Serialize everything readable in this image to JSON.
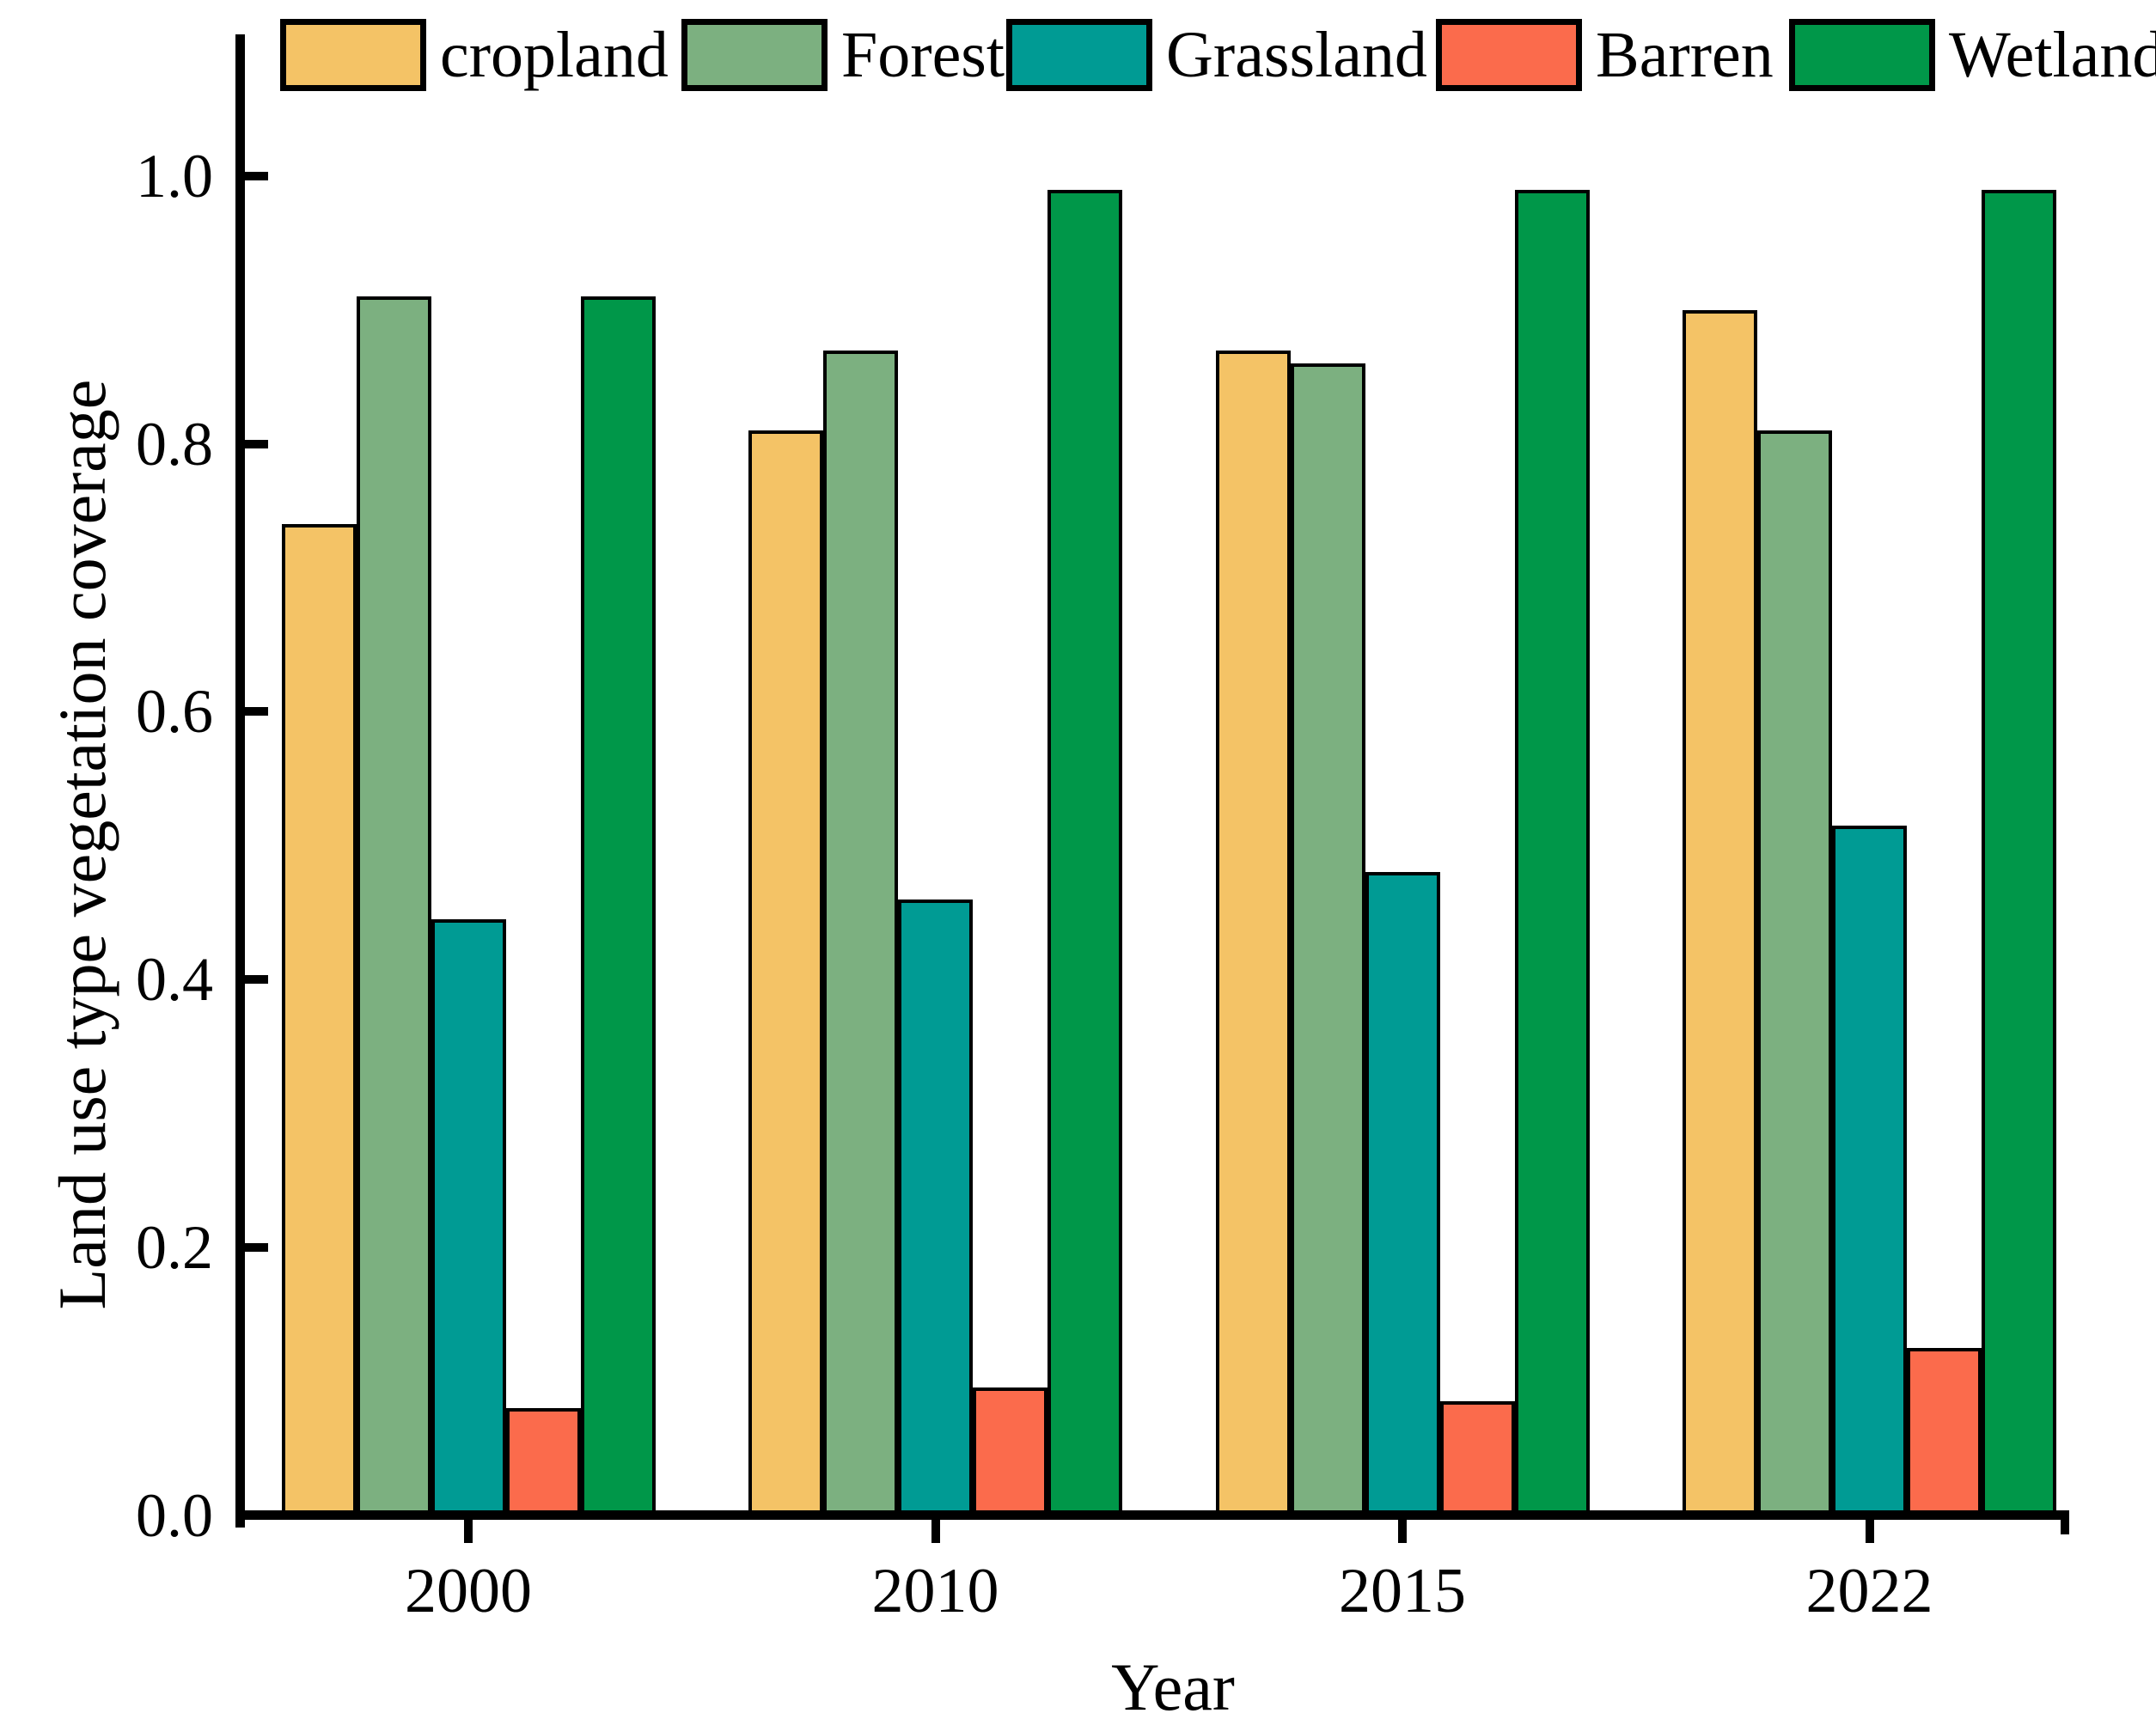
{
  "chart_data": {
    "type": "bar",
    "title": "",
    "xlabel": "Year",
    "ylabel": "Land use type vegetation coverage",
    "categories": [
      "2000",
      "2010",
      "2015",
      "2022"
    ],
    "series": [
      {
        "name": "cropland",
        "color": "#F4C366",
        "values": [
          0.74,
          0.81,
          0.87,
          0.9
        ]
      },
      {
        "name": "Forest",
        "color": "#7CB080",
        "values": [
          0.91,
          0.87,
          0.86,
          0.81
        ]
      },
      {
        "name": "Grassland",
        "color": "#009B94",
        "values": [
          0.445,
          0.46,
          0.48,
          0.515
        ]
      },
      {
        "name": "Barren",
        "color": "#FB6B4C",
        "values": [
          0.08,
          0.095,
          0.085,
          0.125
        ]
      },
      {
        "name": "Wetland",
        "color": "#009749",
        "values": [
          0.91,
          0.99,
          0.99,
          0.99
        ]
      }
    ],
    "ylim": [
      0.0,
      1.0
    ],
    "yticks": [
      "0.0",
      "0.2",
      "0.4",
      "0.6",
      "0.8",
      "1.0"
    ],
    "grid": false,
    "legend_position": "top",
    "bar_edge_color": "#000000",
    "background_color": "#FFFFFF"
  }
}
